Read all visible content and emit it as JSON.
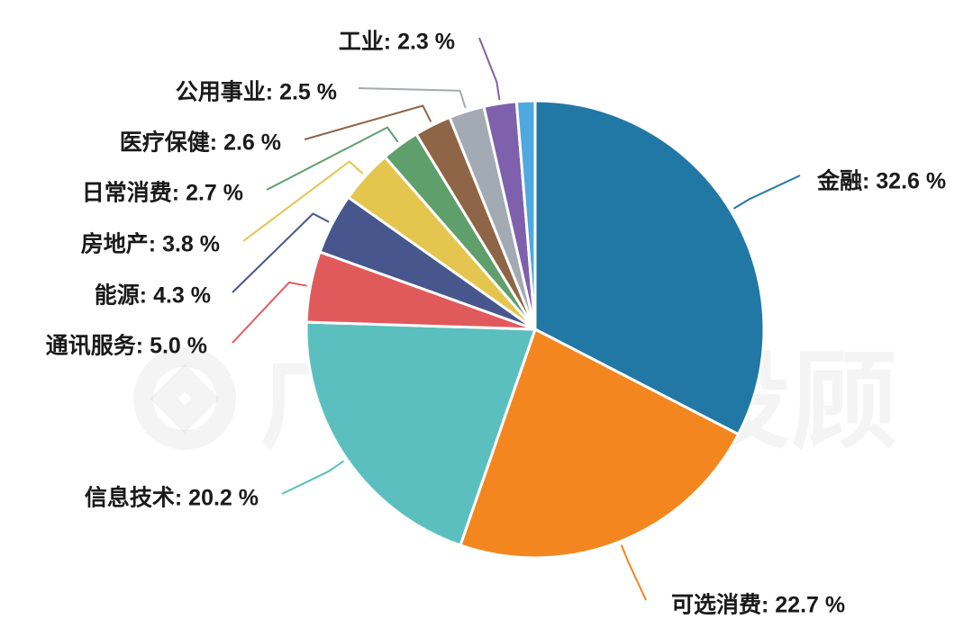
{
  "watermark": {
    "text": "广发基金投顾"
  },
  "chart_data": {
    "type": "pie",
    "title": "",
    "slices": [
      {
        "label": "金融",
        "display": "金融: 32.6 %",
        "value": 32.6,
        "color": "#2278a5"
      },
      {
        "label": "可选消费",
        "display": "可选消费: 22.7 %",
        "value": 22.7,
        "color": "#f4861f"
      },
      {
        "label": "信息技术",
        "display": "信息技术: 20.2 %",
        "value": 20.2,
        "color": "#5bbfbf"
      },
      {
        "label": "通讯服务",
        "display": "通讯服务: 5.0 %",
        "value": 5.0,
        "color": "#e05a5c"
      },
      {
        "label": "能源",
        "display": "能源: 4.3 %",
        "value": 4.3,
        "color": "#47578e"
      },
      {
        "label": "房地产",
        "display": "房地产: 3.8 %",
        "value": 3.8,
        "color": "#e4c64e"
      },
      {
        "label": "日常消费",
        "display": "日常消费: 2.7 %",
        "value": 2.7,
        "color": "#5e9f6c"
      },
      {
        "label": "医疗保健",
        "display": "医疗保健: 2.6 %",
        "value": 2.6,
        "color": "#8e6547"
      },
      {
        "label": "公用事业",
        "display": "公用事业: 2.5 %",
        "value": 2.5,
        "color": "#a2aab3"
      },
      {
        "label": "工业",
        "display": "工业: 2.3 %",
        "value": 2.3,
        "color": "#7f60ad"
      },
      {
        "label": "",
        "display": "",
        "value": 1.3,
        "color": "#4fa9e0"
      }
    ]
  }
}
